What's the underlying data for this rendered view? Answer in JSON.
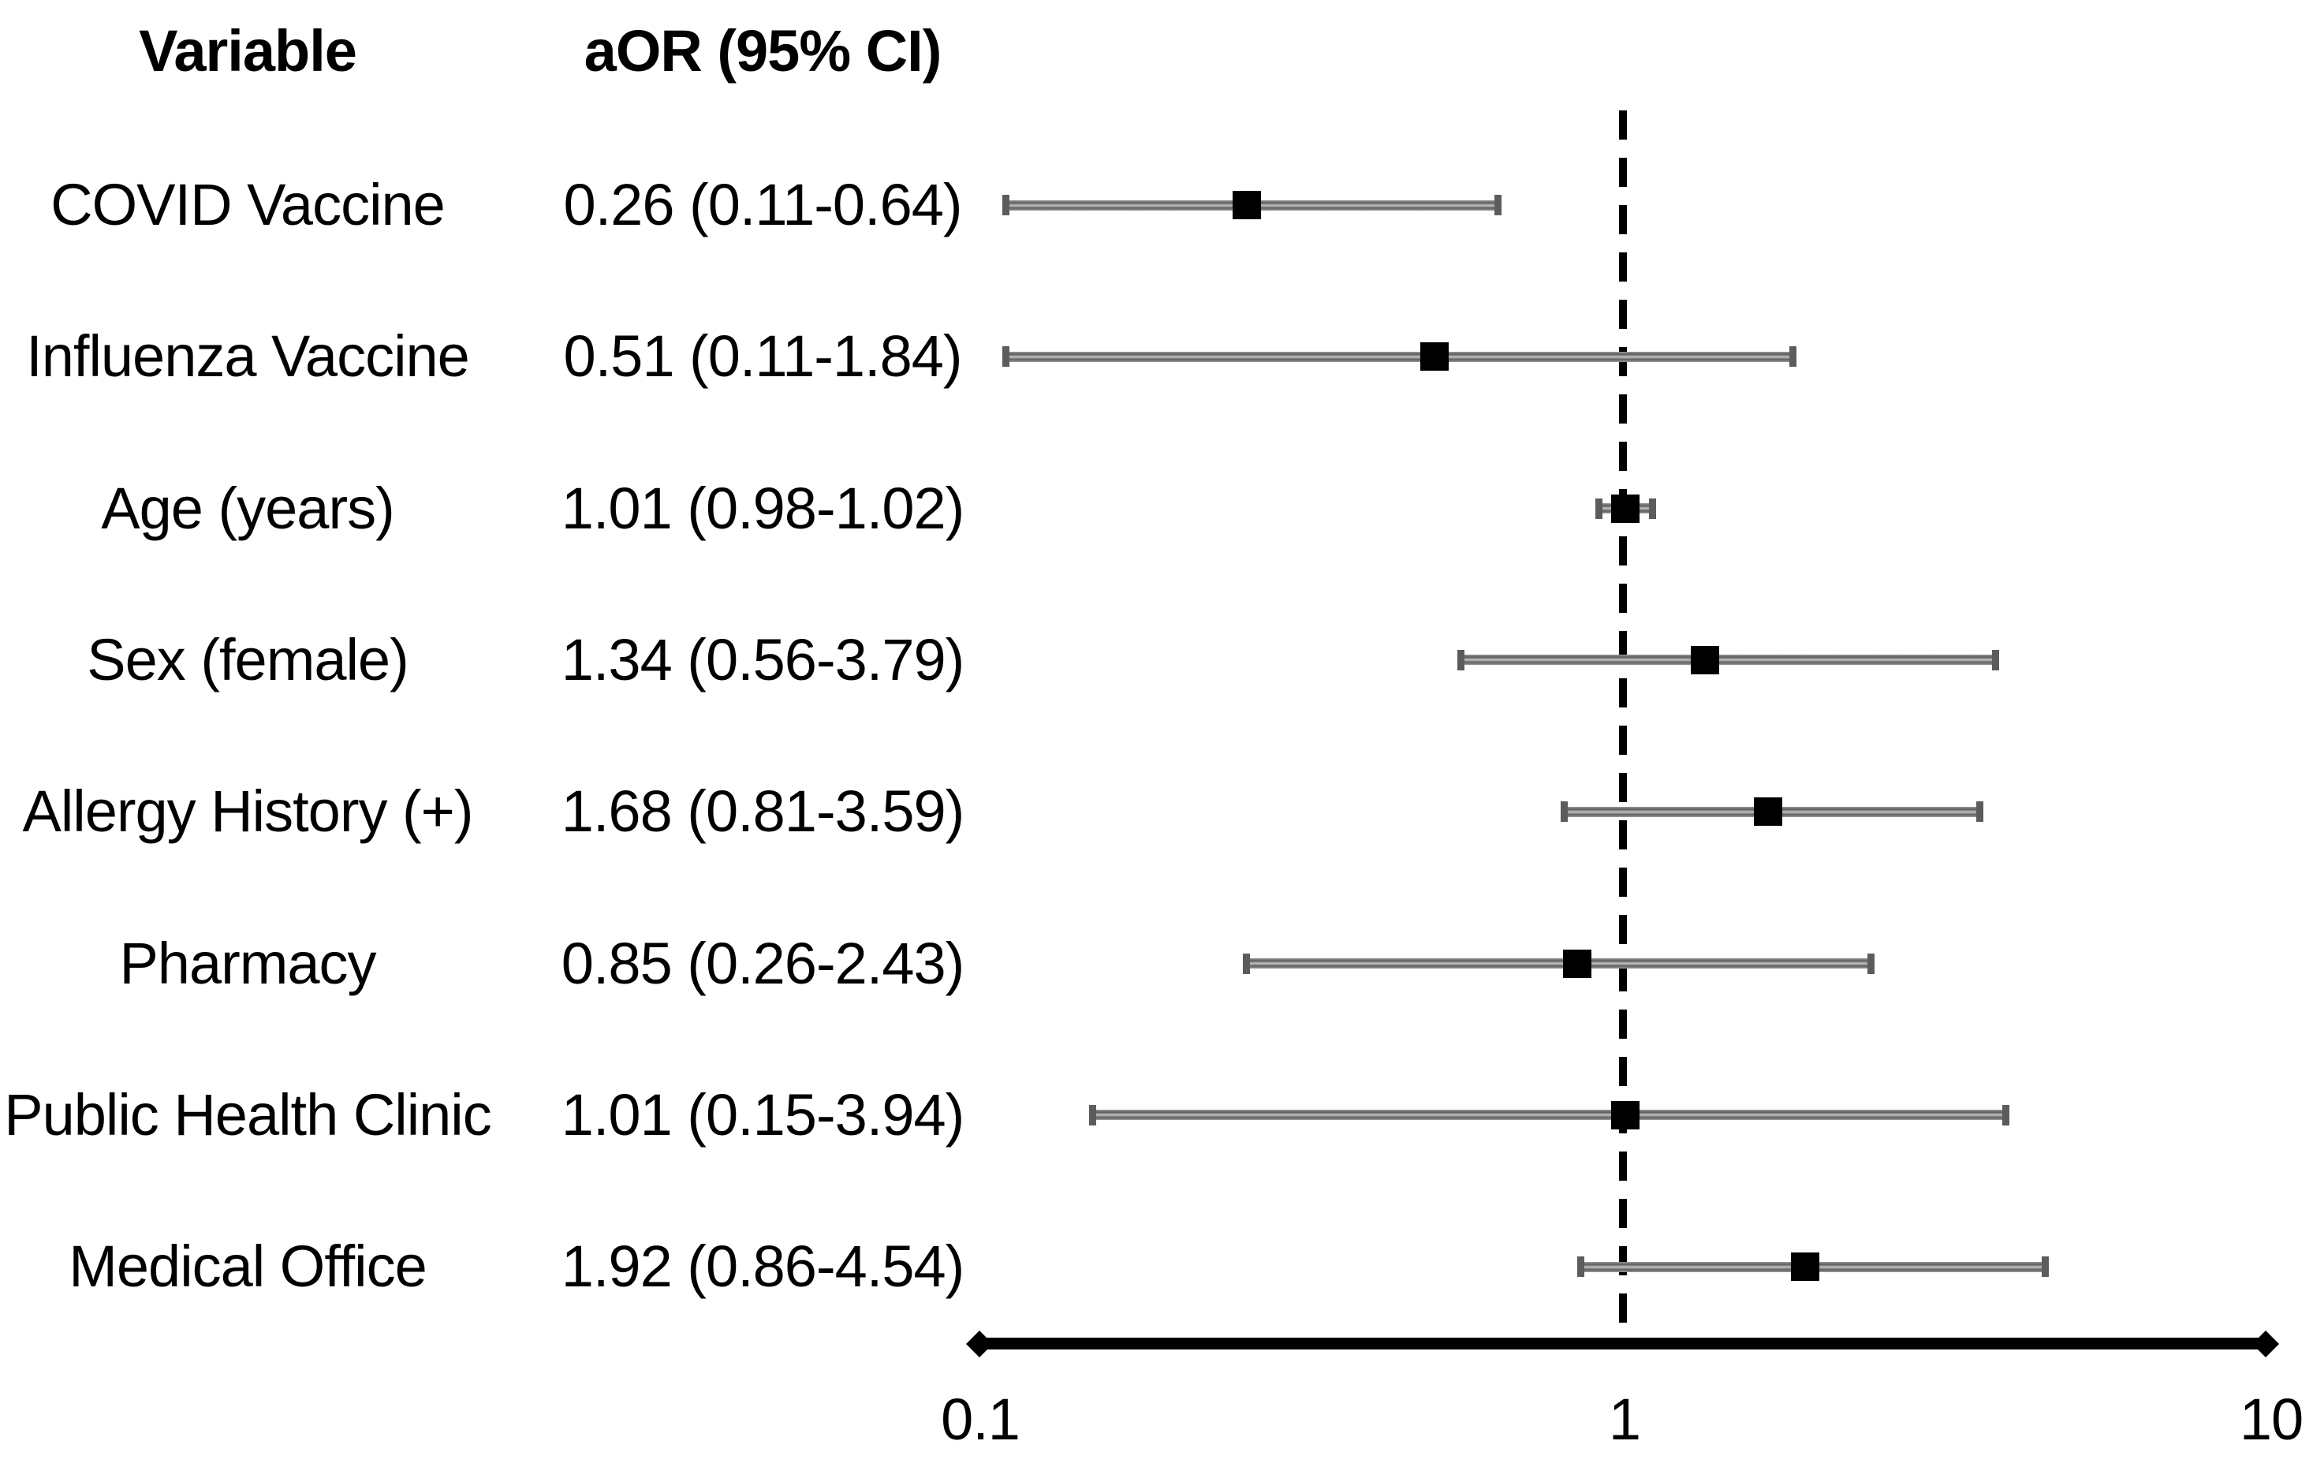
{
  "chart_data": {
    "type": "scatter",
    "variant": "forest_plot",
    "col_headers": {
      "variable": "Variable",
      "aor": "aOR (95% CI)"
    },
    "x_scale": "log10",
    "x_range": [
      0.1,
      10
    ],
    "x_tick_labels": [
      "0.1",
      "1",
      "10"
    ],
    "reference_line_x": 1,
    "rows": [
      {
        "label": "COVID Vaccine",
        "aor_text": "0.26 (0.11-0.64)",
        "est": 0.26,
        "ci_low": 0.11,
        "ci_high": 0.64
      },
      {
        "label": "Influenza Vaccine",
        "aor_text": "0.51 (0.11-1.84)",
        "est": 0.51,
        "ci_low": 0.11,
        "ci_high": 1.84
      },
      {
        "label": "Age (years)",
        "aor_text": "1.01 (0.98-1.02)",
        "est": 1.01,
        "ci_low": 0.98,
        "ci_high": 1.02
      },
      {
        "label": "Sex (female)",
        "aor_text": "1.34 (0.56-3.79)",
        "est": 1.34,
        "ci_low": 0.56,
        "ci_high": 3.79
      },
      {
        "label": "Allergy History (+)",
        "aor_text": "1.68 (0.81-3.59)",
        "est": 1.68,
        "ci_low": 0.81,
        "ci_high": 3.59
      },
      {
        "label": "Pharmacy",
        "aor_text": "0.85 (0.26-2.43)",
        "est": 0.85,
        "ci_low": 0.26,
        "ci_high": 2.43
      },
      {
        "label": "Public Health Clinic",
        "aor_text": "1.01 (0.15-3.94)",
        "est": 1.01,
        "ci_low": 0.15,
        "ci_high": 3.94
      },
      {
        "label": "Medical Office",
        "aor_text": "1.92 (0.86-4.54)",
        "est": 1.92,
        "ci_low": 0.86,
        "ci_high": 4.54
      }
    ],
    "legend": null,
    "grid": false,
    "colors": {
      "marker": "#000000",
      "ci_bar": "#6a6a6a",
      "axis": "#000000",
      "text": "#000000",
      "background": "#ffffff"
    }
  }
}
